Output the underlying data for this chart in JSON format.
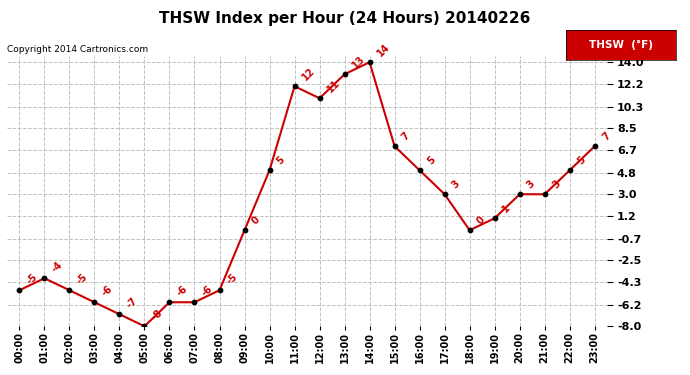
{
  "title": "THSW Index per Hour (24 Hours) 20140226",
  "copyright": "Copyright 2014 Cartronics.com",
  "legend_label": "THSW  (°F)",
  "hours": [
    0,
    1,
    2,
    3,
    4,
    5,
    6,
    7,
    8,
    9,
    10,
    11,
    12,
    13,
    14,
    15,
    16,
    17,
    18,
    19,
    20,
    21,
    22,
    23
  ],
  "values": [
    -5,
    -4,
    -5,
    -6,
    -7,
    -8,
    -6,
    -6,
    -5,
    0,
    5,
    12,
    11,
    13,
    14,
    7,
    5,
    3,
    0,
    1,
    3,
    3,
    5,
    7
  ],
  "yticks": [
    -8.0,
    -6.2,
    -4.3,
    -2.5,
    -0.7,
    1.2,
    3.0,
    4.8,
    6.7,
    8.5,
    10.3,
    12.2,
    14.0
  ],
  "ytick_labels": [
    "-8.0",
    "-6.2",
    "-4.3",
    "-2.5",
    "-0.7",
    "1.2",
    "3.0",
    "4.8",
    "6.7",
    "8.5",
    "10.3",
    "12.2",
    "14.0"
  ],
  "line_color": "#cc0000",
  "marker_color": "#000000",
  "label_color": "#cc0000",
  "bg_color": "#ffffff",
  "grid_color": "#c0c0c0",
  "title_color": "#000000",
  "legend_bg": "#cc0000",
  "legend_text_color": "#ffffff",
  "copyright_color": "#000000",
  "figsize": [
    6.9,
    3.75
  ],
  "dpi": 100
}
